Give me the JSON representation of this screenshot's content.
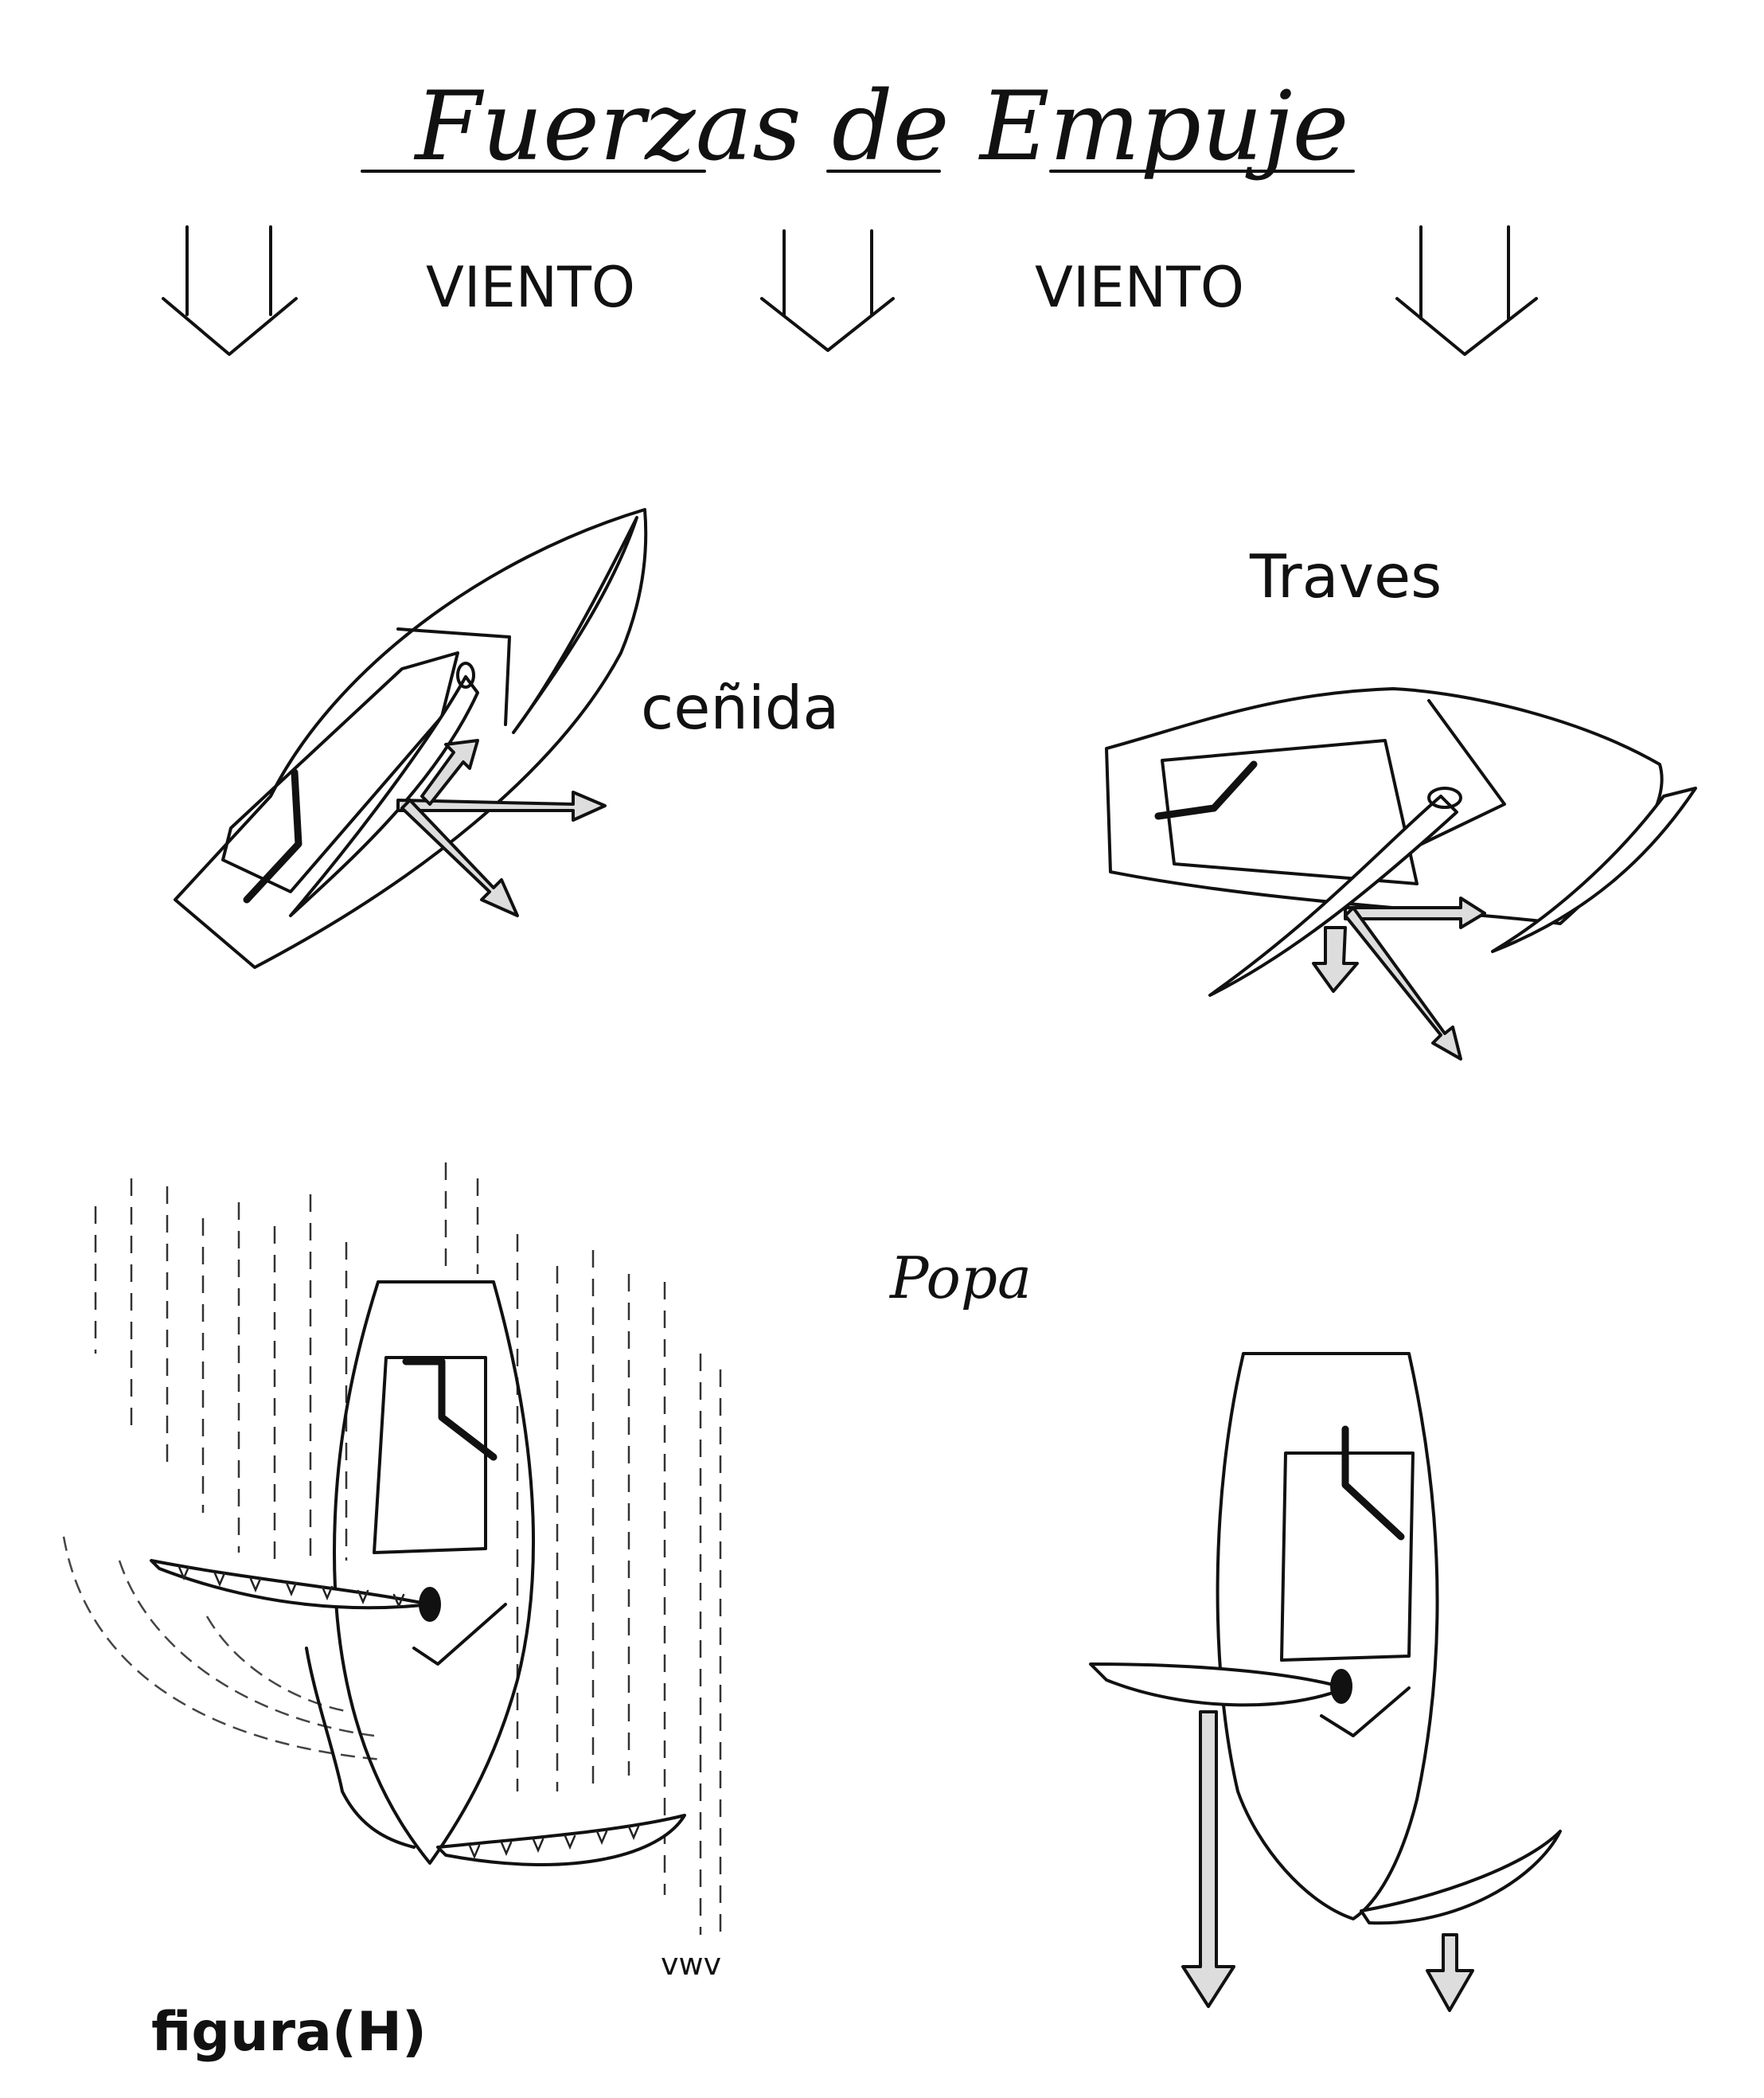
{
  "title": "Fuerzas de Empuje",
  "wind_labels": [
    "VIENTO",
    "VIENTO"
  ],
  "points_of_sail": {
    "closehauled": "ceñida",
    "beam_reach": "Traves",
    "run": "Popa"
  },
  "figure_label": "figura(H)",
  "flow_marker": "vwv"
}
